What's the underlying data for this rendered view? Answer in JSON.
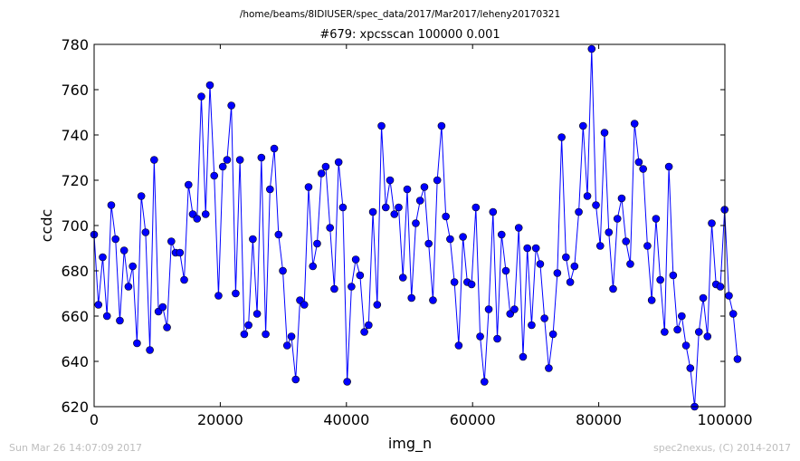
{
  "path_title": "/home/beams/8IDIUSER/spec_data/2017/Mar2017/leheny20170321",
  "footer_left": "Sun Mar 26 14:07:09 2017",
  "footer_right": "spec2nexus, (C) 2014-2017",
  "chart_data": {
    "type": "line",
    "title": "#679: xpcsscan 100000 0.001",
    "xlabel": "img_n",
    "ylabel": "ccdc",
    "xlim": [
      0,
      100000
    ],
    "ylim": [
      620,
      780
    ],
    "xticks": [
      "0",
      "20000",
      "40000",
      "60000",
      "80000",
      "100000"
    ],
    "yticks": [
      "620",
      "640",
      "660",
      "680",
      "700",
      "720",
      "740",
      "760",
      "780"
    ],
    "grid": false,
    "marker": "circle",
    "color": "#0000ff",
    "x_step": 680,
    "series": [
      {
        "values": [
          696,
          665,
          686,
          660,
          709,
          694,
          658,
          689,
          673,
          682,
          648,
          713,
          697,
          645,
          729,
          662,
          664,
          655,
          693,
          688,
          688,
          676,
          718,
          705,
          703,
          757,
          705,
          762,
          722,
          669,
          726,
          729,
          753,
          670,
          729,
          652,
          656,
          694,
          661,
          730,
          652,
          716,
          734,
          696,
          680,
          647,
          651,
          632,
          667,
          665,
          717,
          682,
          692,
          723,
          726,
          699,
          672,
          728,
          708,
          631,
          673,
          685,
          678,
          653,
          656,
          706,
          665,
          744,
          708,
          720,
          705,
          708,
          677,
          716,
          668,
          701,
          711,
          717,
          692,
          667,
          720,
          744,
          704,
          694,
          675,
          647,
          695,
          675,
          674,
          708,
          651,
          631,
          663,
          706,
          650,
          696,
          680,
          661,
          663,
          699,
          642,
          690,
          656,
          690,
          683,
          659,
          637,
          652,
          679,
          739,
          686,
          675,
          682,
          706,
          744,
          713,
          778,
          709,
          691,
          741,
          697,
          672,
          703,
          712,
          693,
          683,
          745,
          728,
          725,
          691,
          667,
          703,
          676,
          653,
          726,
          678,
          654,
          660,
          647,
          637,
          620,
          653,
          668,
          651,
          701,
          674,
          673,
          707,
          669,
          661,
          641
        ]
      }
    ]
  }
}
